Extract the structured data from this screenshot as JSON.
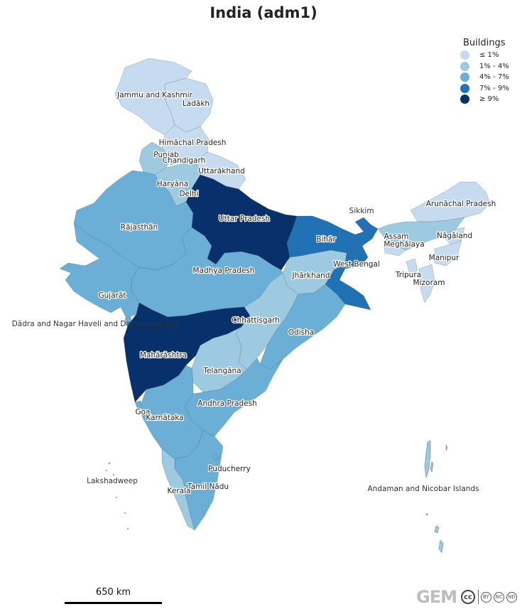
{
  "map": {
    "title": "India (adm1)",
    "legend": {
      "title": "Buildings",
      "items": [
        {
          "label": "≤ 1%",
          "color": "#c6dbef"
        },
        {
          "label": "1% - 4%",
          "color": "#9ecae1"
        },
        {
          "label": "4% - 7%",
          "color": "#6baed6"
        },
        {
          "label": "7% - 9%",
          "color": "#2171b5"
        },
        {
          "label": "≥ 9%",
          "color": "#08306b"
        }
      ]
    },
    "scale_bar": {
      "label": "650 km"
    },
    "credits": {
      "logo": "GEM",
      "license": "cc",
      "badges": [
        "BY",
        "NC",
        "ND"
      ]
    },
    "regions": [
      {
        "name": "Jammu and Kashmir",
        "class": "≤ 1%"
      },
      {
        "name": "Ladākh",
        "class": "≤ 1%"
      },
      {
        "name": "Himāchal Pradesh",
        "class": "≤ 1%"
      },
      {
        "name": "Punjab",
        "class": "1% - 4%"
      },
      {
        "name": "Chandigarh",
        "class": "1% - 4%"
      },
      {
        "name": "Uttarākhand",
        "class": "≤ 1%"
      },
      {
        "name": "Haryāna",
        "class": "1% - 4%"
      },
      {
        "name": "Delhi",
        "class": "1% - 4%"
      },
      {
        "name": "Rājasthān",
        "class": "4% - 7%"
      },
      {
        "name": "Uttar Pradesh",
        "class": "≥ 9%"
      },
      {
        "name": "Bihār",
        "class": "7% - 9%"
      },
      {
        "name": "Sikkim",
        "class": "7% - 9%"
      },
      {
        "name": "Arunāchal Pradesh",
        "class": "≤ 1%"
      },
      {
        "name": "Assam",
        "class": "1% - 4%"
      },
      {
        "name": "Meghālaya",
        "class": "≤ 1%"
      },
      {
        "name": "Nāgāland",
        "class": "≤ 1%"
      },
      {
        "name": "Manipur",
        "class": "≤ 1%"
      },
      {
        "name": "Tripura",
        "class": "≤ 1%"
      },
      {
        "name": "Mizoram",
        "class": "≤ 1%"
      },
      {
        "name": "West Bengal",
        "class": "7% - 9%"
      },
      {
        "name": "Jhārkhand",
        "class": "1% - 4%"
      },
      {
        "name": "Madhya Pradesh",
        "class": "4% - 7%"
      },
      {
        "name": "Gujarāt",
        "class": "4% - 7%"
      },
      {
        "name": "Dādra and Nagar Haveli and Damān and Diu",
        "class": "4% - 7%"
      },
      {
        "name": "Chhattīsgarh",
        "class": "1% - 4%"
      },
      {
        "name": "Odisha",
        "class": "4% - 7%"
      },
      {
        "name": "Mahārāshtra",
        "class": "≥ 9%"
      },
      {
        "name": "Telangāna",
        "class": "1% - 4%"
      },
      {
        "name": "Andhra Pradesh",
        "class": "4% - 7%"
      },
      {
        "name": "Goa",
        "class": "4% - 7%"
      },
      {
        "name": "Karnātaka",
        "class": "4% - 7%"
      },
      {
        "name": "Puducherry",
        "class": "4% - 7%"
      },
      {
        "name": "Tamil Nādu",
        "class": "4% - 7%"
      },
      {
        "name": "Kerala",
        "class": "1% - 4%"
      },
      {
        "name": "Lakshadweep",
        "class": "≤ 1%"
      },
      {
        "name": "Andaman and Nicobar Islands",
        "class": "1% - 4%"
      }
    ]
  }
}
